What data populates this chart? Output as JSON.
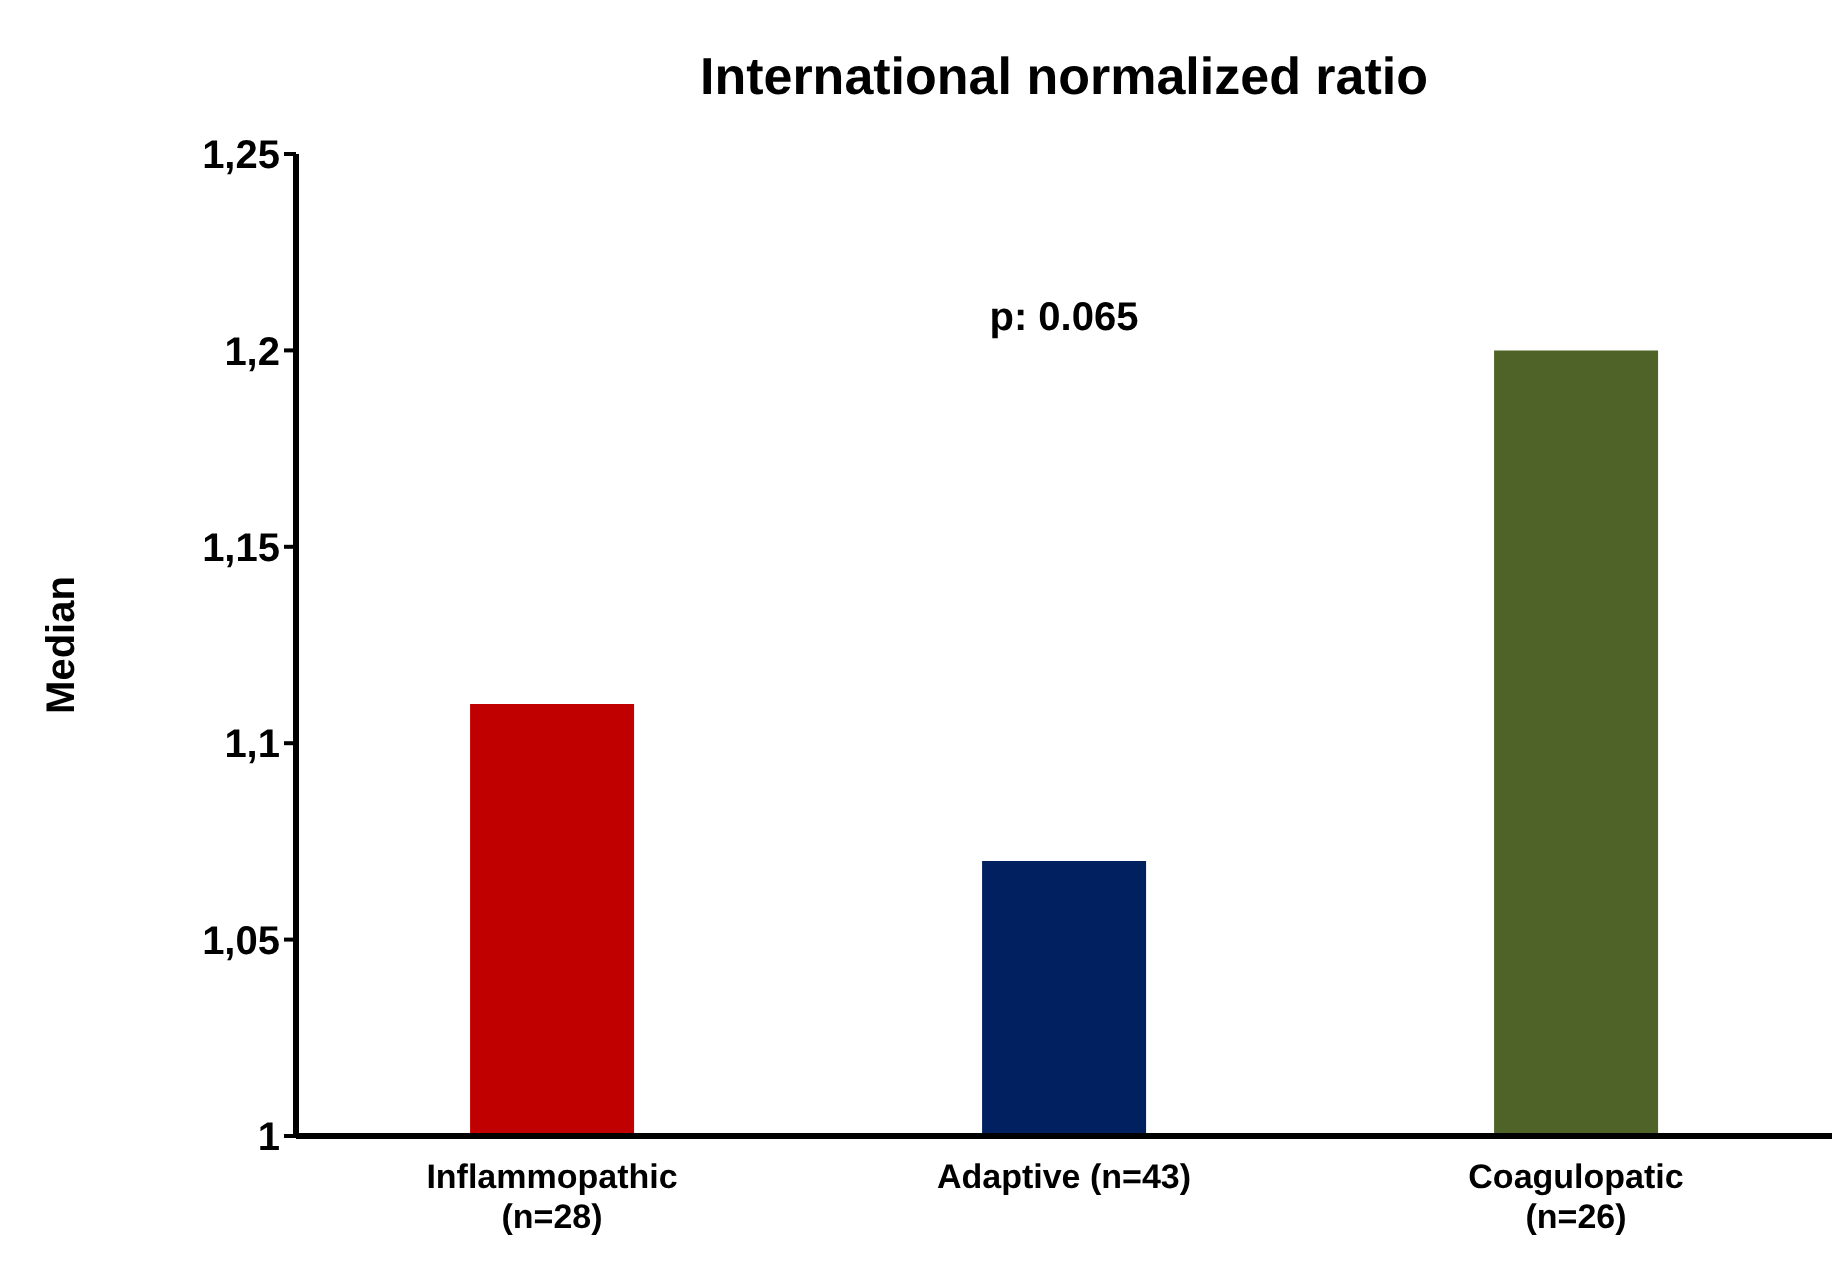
{
  "chart_data": {
    "type": "bar",
    "title": "International normalized ratio",
    "ylabel": "Median",
    "categories": [
      "Inflammopathic (n=28)",
      "Adaptive (n=43)",
      "Coagulopatic (n=26)"
    ],
    "values": [
      1.11,
      1.07,
      1.2
    ],
    "colors": [
      "#c00000",
      "#002060",
      "#4f6228"
    ],
    "ylim": [
      1,
      1.25
    ],
    "yticks": [
      {
        "value": 1,
        "label": "1"
      },
      {
        "value": 1.05,
        "label": "1,05"
      },
      {
        "value": 1.1,
        "label": "1,1"
      },
      {
        "value": 1.15,
        "label": "1,15"
      },
      {
        "value": 1.2,
        "label": "1,2"
      },
      {
        "value": 1.25,
        "label": "1,25"
      }
    ],
    "annotations": [
      "p: 0.065"
    ],
    "grid": false,
    "legend": false
  }
}
